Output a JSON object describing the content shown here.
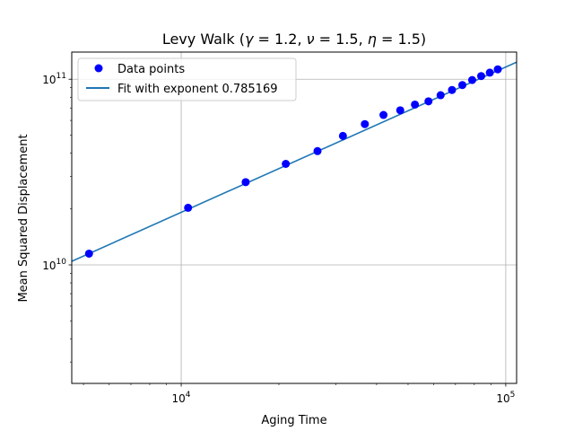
{
  "chart_data": {
    "type": "scatter",
    "title": "Levy Walk (γ = 1.2, ν =  1.5, η =  1.5)",
    "title_parts": {
      "prefix": "Levy Walk (",
      "gamma_symbol": "γ",
      "gamma_eq": " = 1.2, ",
      "nu_symbol": "ν",
      "nu_eq": " =  1.5, ",
      "eta_symbol": "η",
      "eta_eq": " =  1.5)"
    },
    "xlabel": "Aging Time",
    "ylabel": "Mean Squared Displacement",
    "xscale": "log",
    "yscale": "log",
    "xlim": [
      4600,
      108000
    ],
    "ylim": [
      2300000000,
      140000000000
    ],
    "grid": true,
    "legend_position": "upper-left",
    "x_ticks": [
      {
        "value": 10000,
        "label": "10",
        "exp": "4"
      },
      {
        "value": 100000,
        "label": "10",
        "exp": "5"
      }
    ],
    "y_ticks": [
      {
        "value": 10000000000,
        "label": "10",
        "exp": "10"
      },
      {
        "value": 100000000000,
        "label": "10",
        "exp": "11"
      }
    ],
    "series": [
      {
        "name": "Data points",
        "kind": "scatter",
        "color": "#0000ff",
        "x": [
          5200,
          10500,
          15800,
          21000,
          26300,
          31500,
          36800,
          42000,
          47300,
          52500,
          57800,
          63000,
          68300,
          73500,
          78800,
          84000,
          89300,
          94500
        ],
        "y": [
          11500000000,
          20300000000,
          27900000000,
          35000000000,
          41000000000,
          49500000000,
          57300000000,
          64200000000,
          68000000000,
          73000000000,
          76000000000,
          82000000000,
          87500000000,
          93000000000,
          99000000000,
          104000000000,
          108500000000,
          113000000000
        ]
      },
      {
        "name": "Fit with exponent 0.785169",
        "kind": "line",
        "color": "#1f77b4",
        "exponent": 0.785169,
        "x": [
          4600,
          108000
        ],
        "y": [
          10450000000,
          123500000000
        ]
      }
    ]
  }
}
